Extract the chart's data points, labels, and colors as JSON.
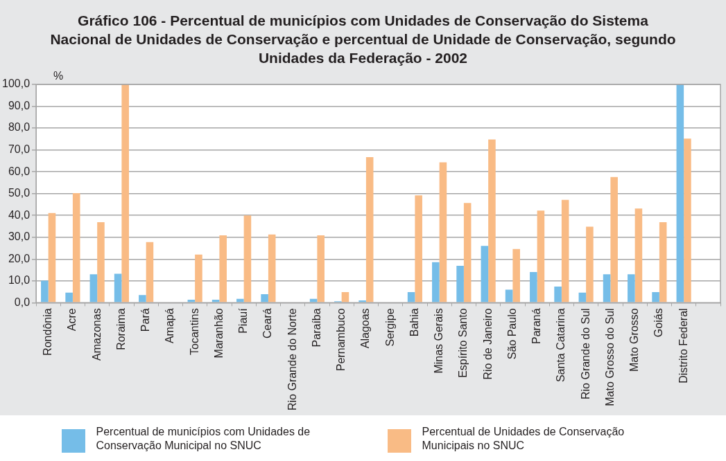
{
  "chart_data": {
    "type": "bar",
    "title": "Gráfico 106 - Percentual de municípios com Unidades de Conservação do Sistema Nacional de Unidades de Conservação e percentual de Unidade de Conservação, segundo Unidades da Federação - 2002",
    "ylabel": "%",
    "categories": [
      "Rondônia",
      "Acre",
      "Amazonas",
      "Roraima",
      "Pará",
      "Amapá",
      "Tocantins",
      "Maranhão",
      "Piauí",
      "Ceará",
      "Rio Grande do Norte",
      "Paraíba",
      "Pernambuco",
      "Alagoas",
      "Sergipe",
      "Bahia",
      "Minas Gerais",
      "Espírito Santo",
      "Rio de Janeiro",
      "São Paulo",
      "Paraná",
      "Santa Catarina",
      "Rio Grande do Sul",
      "Mato Grosso do Sul",
      "Mato Grosso",
      "Goiás",
      "Distrito Federal",
      null
    ],
    "series": [
      {
        "name": "Percentual de municípios com Unidades de Conservação Municipal no SNUC",
        "color": "#75bde8",
        "values": [
          10.1,
          4.6,
          13.0,
          13.3,
          3.5,
          0,
          1.4,
          1.4,
          1.8,
          3.9,
          0,
          1.8,
          0.7,
          1.1,
          0,
          4.9,
          18.6,
          16.9,
          26.0,
          6.0,
          14.1,
          7.4,
          4.6,
          13.0,
          13.0,
          4.9,
          100,
          null
        ]
      },
      {
        "name": "Percentual de Unidades de Conservação Municipais no SNUC",
        "color": "#f9bb85",
        "values": [
          41.1,
          50.2,
          36.9,
          100,
          27.8,
          0,
          22.1,
          30.9,
          40.0,
          31.3,
          0,
          30.9,
          4.9,
          66.7,
          0,
          49.2,
          64.3,
          45.7,
          74.8,
          24.6,
          42.2,
          47.1,
          34.8,
          57.6,
          43.2,
          36.9,
          75.2,
          null
        ]
      }
    ],
    "ylim": [
      0,
      100
    ],
    "yticks": [
      {
        "value": 0,
        "label": "0,0"
      },
      {
        "value": 10,
        "label": "10,0"
      },
      {
        "value": 20,
        "label": "20,0"
      },
      {
        "value": 30,
        "label": "30,0"
      },
      {
        "value": 40,
        "label": "40,0"
      },
      {
        "value": 50,
        "label": "50,0"
      },
      {
        "value": 60,
        "label": "60,0"
      },
      {
        "value": 70,
        "label": "70,0"
      },
      {
        "value": 80,
        "label": "80,0"
      },
      {
        "value": 90,
        "label": "90,0"
      },
      {
        "value": 100,
        "label": "100,0"
      }
    ],
    "grid": "y",
    "legend": "bottom"
  }
}
